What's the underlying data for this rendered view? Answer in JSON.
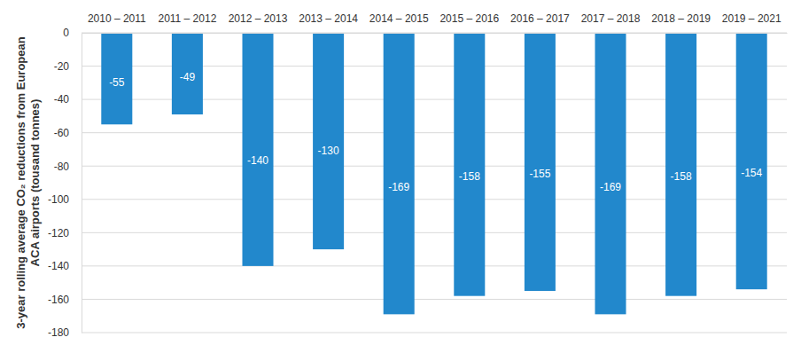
{
  "chart_data": {
    "type": "bar",
    "ylabel": "3-year rolling average CO₂ reductions from European ACA airports (tousand tonnes)",
    "categories": [
      "2010 – 2011",
      "2011 – 2012",
      "2012 – 2013",
      "2013 – 2014",
      "2014 – 2015",
      "2015 – 2016",
      "2016 – 2017",
      "2017 – 2018",
      "2018 – 2019",
      "2019 – 2021"
    ],
    "values": [
      -55,
      -49,
      -140,
      -130,
      -169,
      -158,
      -155,
      -169,
      -158,
      -154
    ],
    "color": "#2288cc",
    "ylim": [
      -180,
      0
    ],
    "yticks": [
      -180,
      -160,
      -140,
      -120,
      -100,
      -80,
      -60,
      -40,
      -20,
      0
    ],
    "grid": true,
    "data_labels": true
  }
}
